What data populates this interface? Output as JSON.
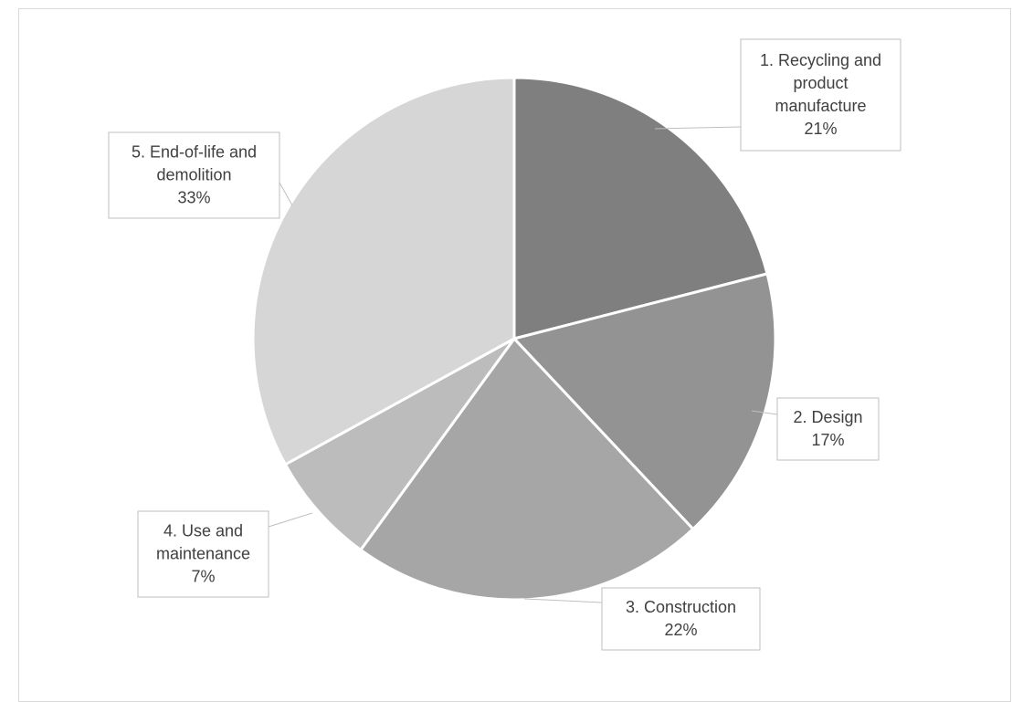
{
  "chart_data": {
    "type": "pie",
    "title": "",
    "slices": [
      {
        "label": "1. Recycling and product manufacture",
        "value": 21,
        "value_label": "21%",
        "color": "#7f7f7f",
        "label_lines": [
          "1. Recycling and",
          "product",
          "manufacture"
        ]
      },
      {
        "label": "2. Design",
        "value": 17,
        "value_label": "17%",
        "color": "#939393",
        "label_lines": [
          "2. Design"
        ]
      },
      {
        "label": "3. Construction",
        "value": 22,
        "value_label": "22%",
        "color": "#a6a6a6",
        "label_lines": [
          "3. Construction"
        ]
      },
      {
        "label": "4. Use and maintenance",
        "value": 7,
        "value_label": "7%",
        "color": "#bcbcbc",
        "label_lines": [
          "4. Use and",
          "maintenance"
        ]
      },
      {
        "label": "5. End-of-life and demolition",
        "value": 33,
        "value_label": "33%",
        "color": "#d6d6d6",
        "label_lines": [
          "5. End-of-life and",
          "demolition"
        ]
      }
    ],
    "start_angle_deg": 0,
    "direction": "clockwise",
    "slice_border_color": "#ffffff",
    "legend": "none",
    "data_labels": "callout boxes with leader lines"
  }
}
